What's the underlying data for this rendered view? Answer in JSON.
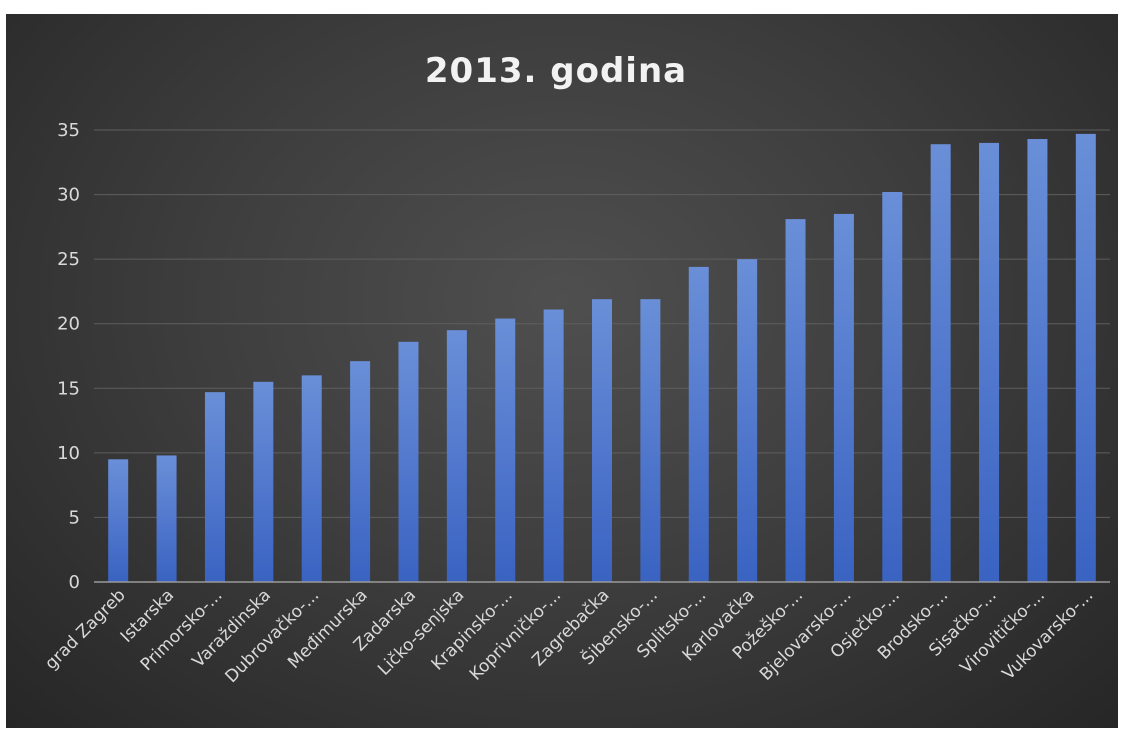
{
  "chart_data": {
    "type": "bar",
    "title": "2013. godina",
    "xlabel": "",
    "ylabel": "",
    "ylim": [
      0,
      35
    ],
    "yticks": [
      0,
      5,
      10,
      15,
      20,
      25,
      30,
      35
    ],
    "grid": true,
    "legend": "none",
    "categories": [
      "grad Zagreb",
      "Istarska",
      "Primorsko-...",
      "Varaždinska",
      "Dubrovačko-...",
      "Međimurska",
      "Zadarska",
      "Ličko-senjska",
      "Krapinsko-...",
      "Koprivničko-...",
      "Zagrebačka",
      "Šibensko-...",
      "Splitsko-...",
      "Karlovačka",
      "Požeško-...",
      "Bjelovarsko-...",
      "Osječko-...",
      "Brodsko-...",
      "Sisačko-...",
      "Virovitičko-...",
      "Vukovarsko-..."
    ],
    "values": [
      9.5,
      9.8,
      14.7,
      15.5,
      16.0,
      17.1,
      18.6,
      19.5,
      20.4,
      21.1,
      21.9,
      21.9,
      24.4,
      25.0,
      28.1,
      28.5,
      30.2,
      33.9,
      34.0,
      34.3,
      34.7
    ],
    "colors": {
      "bar_top": "#6a8fd8",
      "bar_bottom": "#3a63c2",
      "background": "#3a3a3a"
    }
  }
}
